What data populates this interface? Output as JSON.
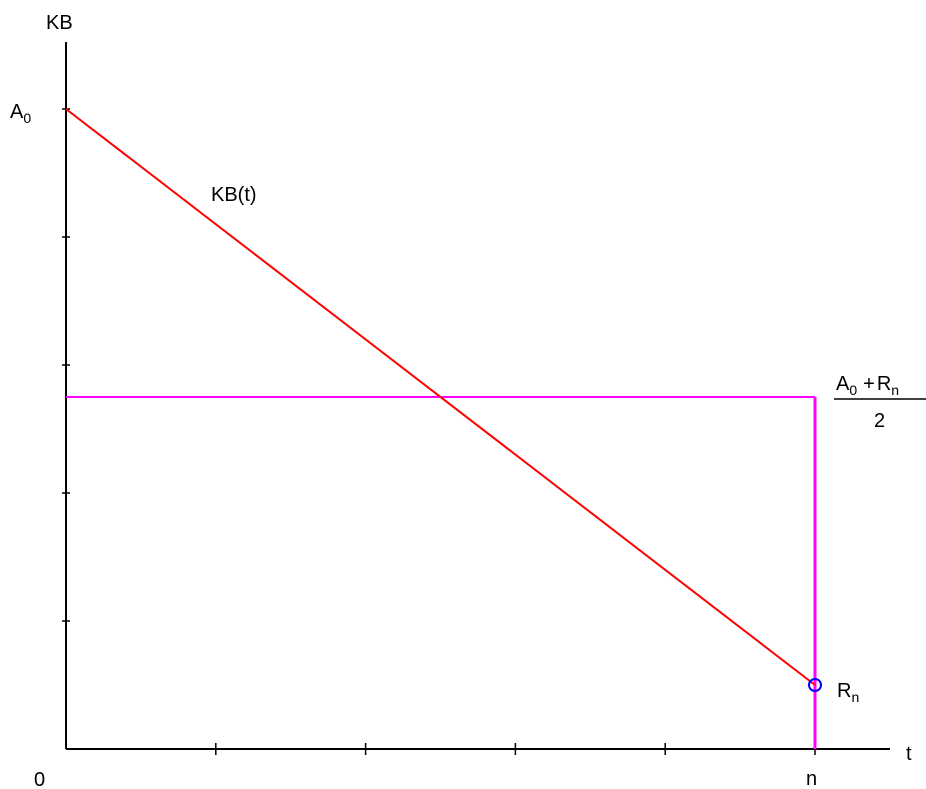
{
  "chart_data": {
    "type": "line",
    "xlabel": "t",
    "ylabel": "KB",
    "x_ticks": [
      "0",
      "n"
    ],
    "y_ticks": [
      {
        "base": "A",
        "sub": "0"
      }
    ],
    "series": [
      {
        "name": "KB(t)",
        "color": "#ff0000",
        "x": [
          0,
          1
        ],
        "y": [
          1,
          0.1
        ]
      }
    ],
    "reference_lines": {
      "color": "#ff00ff",
      "average_level": 0.55,
      "end_t": 1
    },
    "end_point": {
      "x": 1,
      "y": 0.1,
      "color": "#0000ff",
      "label": {
        "base": "R",
        "sub": "n"
      }
    },
    "average_label": {
      "numerator": {
        "a": "A",
        "a_sub": "0",
        "op": "+",
        "b": "R",
        "b_sub": "n"
      },
      "denominator": "2"
    },
    "xlim": [
      0,
      1.1
    ],
    "ylim": [
      0,
      1.1
    ],
    "y_tick_count": 5,
    "x_tick_count": 5,
    "grid": false
  }
}
